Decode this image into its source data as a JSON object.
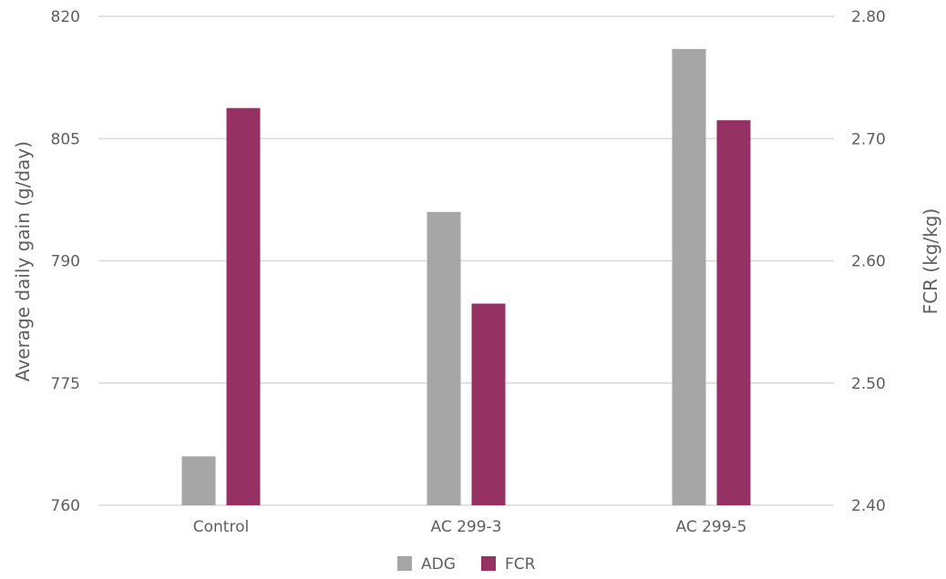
{
  "chart_data": {
    "type": "bar",
    "categories": [
      "Control",
      "AC 299-3",
      "AC 299-5"
    ],
    "series": [
      {
        "name": "ADG",
        "axis": "left",
        "color": "#a6a6a6",
        "values": [
          766,
          796,
          816
        ]
      },
      {
        "name": "FCR",
        "axis": "right",
        "color": "#953163",
        "values": [
          2.725,
          2.565,
          2.715
        ]
      }
    ],
    "ylabel": "Average daily gain (g/day)",
    "ylabel_right": "FCR (kg/kg)",
    "ylim": [
      760,
      820
    ],
    "ylim_right": [
      2.4,
      2.8
    ],
    "yticks": [
      "760",
      "775",
      "790",
      "805",
      "820"
    ],
    "yticks_right": [
      "2.40",
      "2.50",
      "2.60",
      "2.70",
      "2.80"
    ],
    "grid": true,
    "legend_position": "bottom"
  }
}
